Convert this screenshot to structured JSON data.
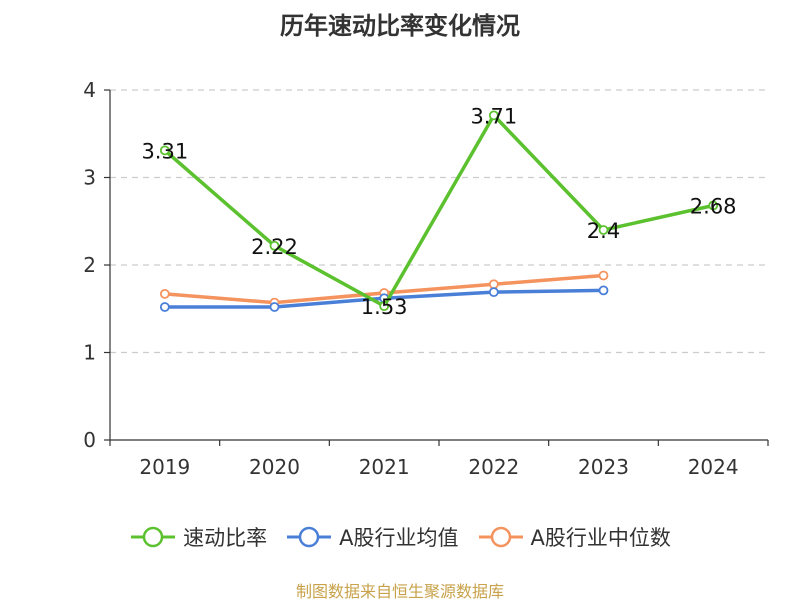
{
  "chart_data": {
    "type": "line",
    "title": "历年速动比率变化情况",
    "categories": [
      "2019",
      "2020",
      "2021",
      "2022",
      "2023",
      "2024"
    ],
    "ylim": [
      0,
      4
    ],
    "yticks": [
      0,
      1,
      2,
      3,
      4
    ],
    "grid": true,
    "legend_position": "bottom",
    "series": [
      {
        "name": "速动比率",
        "color": "#5cc12e",
        "values": [
          3.31,
          2.22,
          1.53,
          3.71,
          2.4,
          2.68
        ],
        "labels": [
          "3.31",
          "2.22",
          "1.53",
          "3.71",
          "2.4",
          "2.68"
        ]
      },
      {
        "name": "A股行业均值",
        "color": "#4a7fd8",
        "values": [
          1.52,
          1.52,
          1.62,
          1.69,
          1.71,
          null
        ]
      },
      {
        "name": "A股行业中位数",
        "color": "#f4935e",
        "values": [
          1.67,
          1.57,
          1.68,
          1.78,
          1.88,
          null
        ]
      }
    ]
  },
  "source_note": "制图数据来自恒生聚源数据库"
}
